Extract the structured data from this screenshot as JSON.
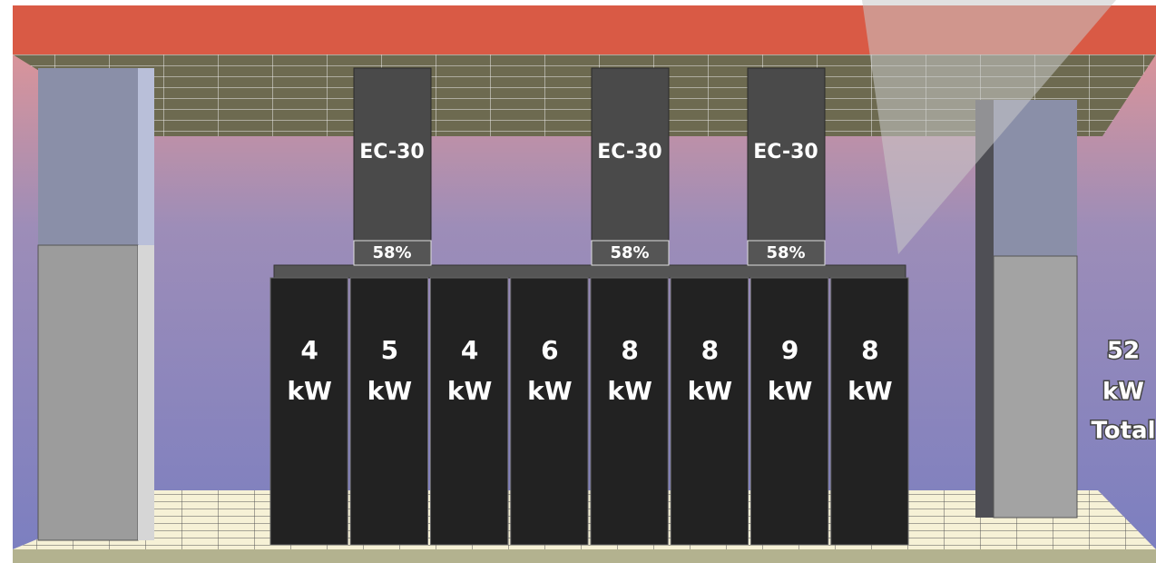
{
  "coolers": [
    {
      "name": "EC-30",
      "load": "58%"
    },
    {
      "name": "EC-30",
      "load": "58%"
    },
    {
      "name": "EC-30",
      "load": "58%"
    }
  ],
  "racks": [
    {
      "power": "4",
      "unit": "kW"
    },
    {
      "power": "5",
      "unit": "kW"
    },
    {
      "power": "4",
      "unit": "kW"
    },
    {
      "power": "6",
      "unit": "kW"
    },
    {
      "power": "8",
      "unit": "kW"
    },
    {
      "power": "8",
      "unit": "kW"
    },
    {
      "power": "9",
      "unit": "kW"
    },
    {
      "power": "8",
      "unit": "kW"
    }
  ],
  "total": {
    "power": "52",
    "unit": "kW",
    "label": "Total"
  }
}
